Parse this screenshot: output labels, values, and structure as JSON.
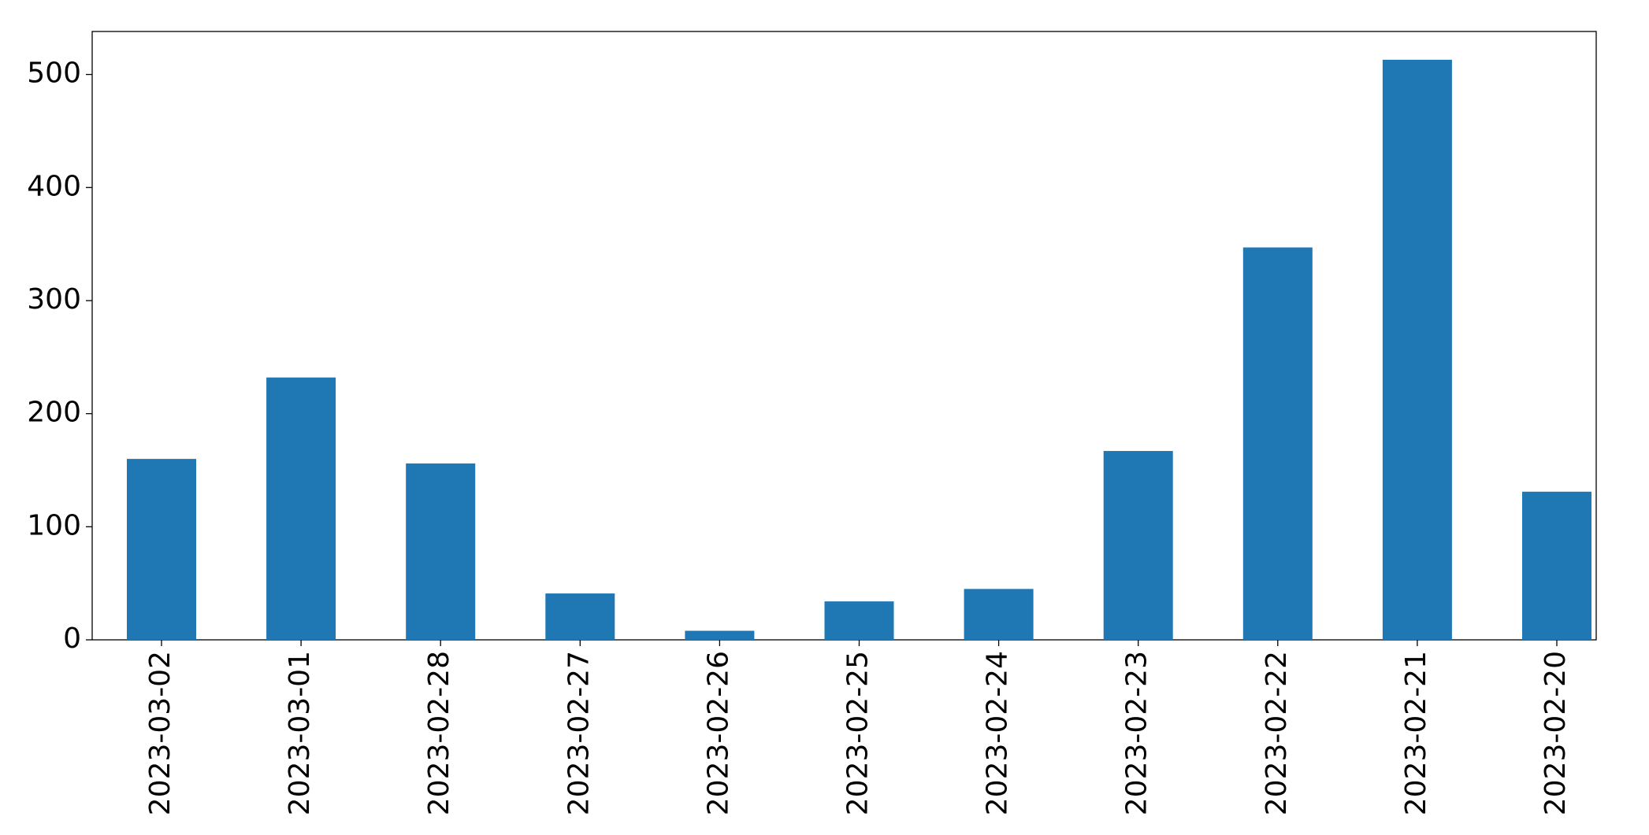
{
  "chart_data": {
    "type": "bar",
    "categories": [
      "2023-03-02",
      "2023-03-01",
      "2023-02-28",
      "2023-02-27",
      "2023-02-26",
      "2023-02-25",
      "2023-02-24",
      "2023-02-23",
      "2023-02-22",
      "2023-02-21",
      "2023-02-20"
    ],
    "values": [
      160,
      232,
      156,
      41,
      8,
      34,
      45,
      167,
      347,
      513,
      131
    ],
    "color": "#1f77b4",
    "ylim": [
      0,
      538
    ],
    "yticks": [
      0,
      100,
      200,
      300,
      400,
      500
    ],
    "grid": false
  }
}
